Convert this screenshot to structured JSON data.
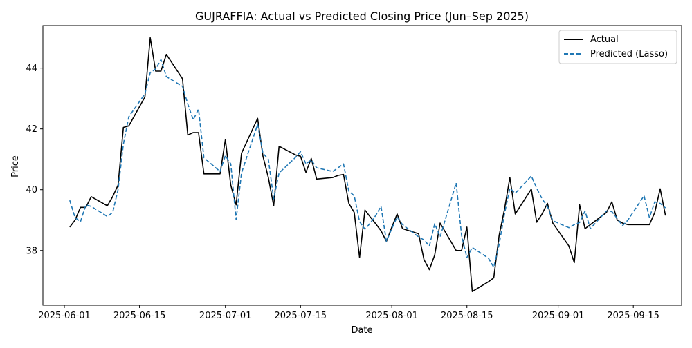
{
  "chart_data": {
    "type": "line",
    "title": "GUJRAFFIA: Actual vs Predicted Closing Price (Jun–Sep 2025)",
    "xlabel": "Date",
    "ylabel": "Price",
    "x_ticks": [
      "2025-06-01",
      "2025-06-15",
      "2025-07-01",
      "2025-07-15",
      "2025-08-01",
      "2025-08-15",
      "2025-09-01",
      "2025-09-15"
    ],
    "y_ticks": [
      "38",
      "40",
      "42",
      "44"
    ],
    "xlim": [
      "2025-05-28",
      "2025-09-24"
    ],
    "ylim": [
      36.2,
      45.4
    ],
    "legend_position": "upper right",
    "series": [
      {
        "name": "Actual",
        "color": "#000000",
        "dash": "solid",
        "points": [
          [
            "2025-06-02",
            38.77
          ],
          [
            "2025-06-03",
            39.0
          ],
          [
            "2025-06-04",
            39.42
          ],
          [
            "2025-06-05",
            39.42
          ],
          [
            "2025-06-06",
            39.77
          ],
          [
            "2025-06-09",
            39.47
          ],
          [
            "2025-06-10",
            39.77
          ],
          [
            "2025-06-11",
            40.15
          ],
          [
            "2025-06-12",
            42.05
          ],
          [
            "2025-06-13",
            42.1
          ],
          [
            "2025-06-16",
            43.05
          ],
          [
            "2025-06-17",
            45.0
          ],
          [
            "2025-06-18",
            43.9
          ],
          [
            "2025-06-19",
            43.9
          ],
          [
            "2025-06-20",
            44.45
          ],
          [
            "2025-06-23",
            43.65
          ],
          [
            "2025-06-24",
            41.8
          ],
          [
            "2025-06-25",
            41.88
          ],
          [
            "2025-06-26",
            41.88
          ],
          [
            "2025-06-27",
            40.52
          ],
          [
            "2025-06-30",
            40.52
          ],
          [
            "2025-07-01",
            41.65
          ],
          [
            "2025-07-02",
            40.15
          ],
          [
            "2025-07-03",
            39.5
          ],
          [
            "2025-07-04",
            41.2
          ],
          [
            "2025-07-07",
            42.35
          ],
          [
            "2025-07-08",
            41.1
          ],
          [
            "2025-07-09",
            40.4
          ],
          [
            "2025-07-10",
            39.47
          ],
          [
            "2025-07-11",
            41.43
          ],
          [
            "2025-07-14",
            41.15
          ],
          [
            "2025-07-15",
            41.1
          ],
          [
            "2025-07-16",
            40.57
          ],
          [
            "2025-07-17",
            41.03
          ],
          [
            "2025-07-18",
            40.35
          ],
          [
            "2025-07-21",
            40.4
          ],
          [
            "2025-07-22",
            40.47
          ],
          [
            "2025-07-23",
            40.5
          ],
          [
            "2025-07-24",
            39.55
          ],
          [
            "2025-07-25",
            39.25
          ],
          [
            "2025-07-26",
            37.77
          ],
          [
            "2025-07-27",
            39.33
          ],
          [
            "2025-07-28",
            39.1
          ],
          [
            "2025-07-29",
            38.88
          ],
          [
            "2025-07-30",
            38.65
          ],
          [
            "2025-07-31",
            38.3
          ],
          [
            "2025-08-01",
            38.77
          ],
          [
            "2025-08-02",
            39.2
          ],
          [
            "2025-08-03",
            38.72
          ],
          [
            "2025-08-06",
            38.55
          ],
          [
            "2025-08-07",
            37.7
          ],
          [
            "2025-08-08",
            37.37
          ],
          [
            "2025-08-09",
            37.85
          ],
          [
            "2025-08-10",
            38.9
          ],
          [
            "2025-08-13",
            38.0
          ],
          [
            "2025-08-14",
            38.0
          ],
          [
            "2025-08-15",
            38.77
          ],
          [
            "2025-08-16",
            36.65
          ],
          [
            "2025-08-19",
            36.97
          ],
          [
            "2025-08-20",
            37.1
          ],
          [
            "2025-08-21",
            38.5
          ],
          [
            "2025-08-22",
            39.35
          ],
          [
            "2025-08-23",
            40.4
          ],
          [
            "2025-08-24",
            39.2
          ],
          [
            "2025-08-27",
            40.02
          ],
          [
            "2025-08-28",
            38.93
          ],
          [
            "2025-08-29",
            39.2
          ],
          [
            "2025-08-30",
            39.55
          ],
          [
            "2025-08-31",
            38.9
          ],
          [
            "2025-09-03",
            38.15
          ],
          [
            "2025-09-04",
            37.6
          ],
          [
            "2025-09-05",
            39.5
          ],
          [
            "2025-09-06",
            38.72
          ],
          [
            "2025-09-07",
            38.85
          ],
          [
            "2025-09-10",
            39.25
          ],
          [
            "2025-09-11",
            39.6
          ],
          [
            "2025-09-12",
            39.0
          ],
          [
            "2025-09-13",
            38.9
          ],
          [
            "2025-09-14",
            38.85
          ],
          [
            "2025-09-17",
            38.85
          ],
          [
            "2025-09-18",
            38.85
          ],
          [
            "2025-09-19",
            39.25
          ],
          [
            "2025-09-20",
            40.03
          ],
          [
            "2025-09-21",
            39.15
          ]
        ]
      },
      {
        "name": "Predicted (Lasso)",
        "color": "#1f77b4",
        "dash": "dashed",
        "points": [
          [
            "2025-06-02",
            39.65
          ],
          [
            "2025-06-03",
            39.08
          ],
          [
            "2025-06-04",
            38.95
          ],
          [
            "2025-06-05",
            39.5
          ],
          [
            "2025-06-06",
            39.45
          ],
          [
            "2025-06-09",
            39.12
          ],
          [
            "2025-06-10",
            39.25
          ],
          [
            "2025-06-11",
            40.0
          ],
          [
            "2025-06-12",
            41.5
          ],
          [
            "2025-06-13",
            42.4
          ],
          [
            "2025-06-16",
            43.15
          ],
          [
            "2025-06-17",
            43.85
          ],
          [
            "2025-06-18",
            43.97
          ],
          [
            "2025-06-19",
            44.28
          ],
          [
            "2025-06-20",
            43.72
          ],
          [
            "2025-06-23",
            43.4
          ],
          [
            "2025-06-24",
            42.82
          ],
          [
            "2025-06-25",
            42.3
          ],
          [
            "2025-06-26",
            42.65
          ],
          [
            "2025-06-27",
            41.05
          ],
          [
            "2025-06-30",
            40.6
          ],
          [
            "2025-07-01",
            41.12
          ],
          [
            "2025-07-02",
            40.85
          ],
          [
            "2025-07-03",
            39.02
          ],
          [
            "2025-07-04",
            40.55
          ],
          [
            "2025-07-07",
            42.15
          ],
          [
            "2025-07-08",
            41.2
          ],
          [
            "2025-07-09",
            41.0
          ],
          [
            "2025-07-10",
            39.7
          ],
          [
            "2025-07-11",
            40.55
          ],
          [
            "2025-07-14",
            41.05
          ],
          [
            "2025-07-15",
            41.25
          ],
          [
            "2025-07-16",
            40.85
          ],
          [
            "2025-07-17",
            40.98
          ],
          [
            "2025-07-18",
            40.72
          ],
          [
            "2025-07-21",
            40.6
          ],
          [
            "2025-07-22",
            40.72
          ],
          [
            "2025-07-23",
            40.85
          ],
          [
            "2025-07-24",
            39.95
          ],
          [
            "2025-07-25",
            39.8
          ],
          [
            "2025-07-26",
            38.95
          ],
          [
            "2025-07-27",
            38.7
          ],
          [
            "2025-07-28",
            38.9
          ],
          [
            "2025-07-29",
            39.15
          ],
          [
            "2025-07-30",
            39.45
          ],
          [
            "2025-07-31",
            38.3
          ],
          [
            "2025-08-01",
            38.72
          ],
          [
            "2025-08-02",
            39.1
          ],
          [
            "2025-08-03",
            38.85
          ],
          [
            "2025-08-06",
            38.45
          ],
          [
            "2025-08-07",
            38.35
          ],
          [
            "2025-08-08",
            38.15
          ],
          [
            "2025-08-09",
            38.88
          ],
          [
            "2025-08-10",
            38.45
          ],
          [
            "2025-08-13",
            40.22
          ],
          [
            "2025-08-14",
            38.5
          ],
          [
            "2025-08-15",
            37.77
          ],
          [
            "2025-08-16",
            38.1
          ],
          [
            "2025-08-19",
            37.75
          ],
          [
            "2025-08-20",
            37.45
          ],
          [
            "2025-08-21",
            38.2
          ],
          [
            "2025-08-22",
            39.2
          ],
          [
            "2025-08-23",
            40.05
          ],
          [
            "2025-08-24",
            39.88
          ],
          [
            "2025-08-27",
            40.45
          ],
          [
            "2025-08-28",
            40.05
          ],
          [
            "2025-08-29",
            39.7
          ],
          [
            "2025-08-30",
            39.45
          ],
          [
            "2025-08-31",
            38.98
          ],
          [
            "2025-09-03",
            38.75
          ],
          [
            "2025-09-04",
            38.85
          ],
          [
            "2025-09-05",
            38.92
          ],
          [
            "2025-09-06",
            39.3
          ],
          [
            "2025-09-07",
            38.72
          ],
          [
            "2025-09-10",
            39.3
          ],
          [
            "2025-09-11",
            39.28
          ],
          [
            "2025-09-12",
            39.05
          ],
          [
            "2025-09-13",
            38.82
          ],
          [
            "2025-09-14",
            39.0
          ],
          [
            "2025-09-17",
            39.8
          ],
          [
            "2025-09-18",
            39.08
          ],
          [
            "2025-09-19",
            39.6
          ],
          [
            "2025-09-20",
            39.55
          ],
          [
            "2025-09-21",
            39.4
          ]
        ]
      }
    ]
  }
}
